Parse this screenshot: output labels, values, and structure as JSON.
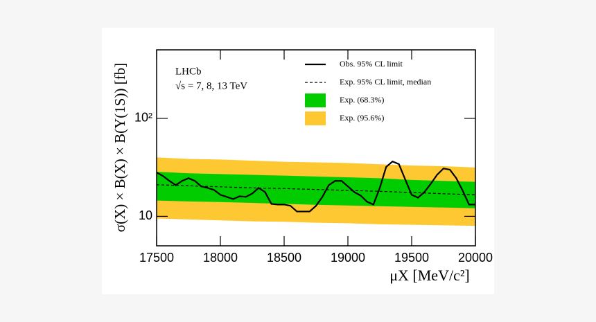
{
  "chart_data": {
    "type": "limit_bands",
    "annotations": [
      "LHCb",
      "√s = 7, 8, 13 TeV"
    ],
    "xlabel": "μX [MeV/c²]",
    "ylabel": "σ(X) × B(X) × B(Υ(1S)) [fb]",
    "xlim": [
      17500,
      20000
    ],
    "xticks": [
      17500,
      18000,
      18500,
      19000,
      19500,
      20000
    ],
    "ylim": [
      5,
      500
    ],
    "ylog": true,
    "yticks": [
      10,
      {
        "value": 100,
        "label": "10²"
      }
    ],
    "series": [
      {
        "name": "Obs. 95% CL limit",
        "color": "#000000",
        "style": "solid",
        "x": [
          17500,
          17550,
          17600,
          17650,
          17700,
          17750,
          17800,
          17850,
          17900,
          17950,
          18000,
          18050,
          18100,
          18150,
          18200,
          18250,
          18300,
          18350,
          18400,
          18450,
          18500,
          18550,
          18600,
          18650,
          18700,
          18750,
          18800,
          18850,
          18900,
          18950,
          19000,
          19050,
          19100,
          19150,
          19200,
          19250,
          19300,
          19350,
          19400,
          19450,
          19500,
          19550,
          19600,
          19650,
          19700,
          19750,
          19800,
          19850,
          19900,
          19950,
          20000
        ],
        "values": [
          28,
          25.8,
          23,
          20.8,
          23,
          24.5,
          23,
          20.2,
          19.5,
          18.6,
          16.6,
          15.8,
          15,
          16,
          15.8,
          17.1,
          19.5,
          17.7,
          13.4,
          13.2,
          13.2,
          12.8,
          11.2,
          11.2,
          11.2,
          12.8,
          15.8,
          20.8,
          23,
          23,
          20.2,
          17.7,
          16.3,
          14.1,
          13.2,
          19.5,
          31.9,
          36.3,
          34.1,
          23.7,
          16.6,
          15.5,
          17.7,
          21.5,
          26.6,
          30.8,
          29.9,
          24.5,
          18.3,
          13.2,
          13.2
        ]
      },
      {
        "name": "Exp. 95% CL limit, median",
        "color": "#000000",
        "style": "dashed",
        "x": [
          17500,
          17750,
          18000,
          18250,
          18500,
          18750,
          19000,
          19250,
          19500,
          19750,
          20000
        ],
        "values": [
          21,
          20.5,
          20,
          19.5,
          19.2,
          18.8,
          18.4,
          18,
          17.5,
          17,
          16.6
        ]
      },
      {
        "name": "Exp. (68.3%)",
        "color": "#00cc00",
        "style": "band",
        "x": [
          17500,
          17750,
          18000,
          18250,
          18500,
          18750,
          19000,
          19250,
          19500,
          19750,
          20000
        ],
        "high": [
          28.5,
          27.5,
          27,
          26.5,
          26,
          25.5,
          25,
          24.5,
          23.5,
          23,
          22.5
        ],
        "low": [
          14.5,
          14.2,
          14,
          13.7,
          13.4,
          13.1,
          12.9,
          12.7,
          12.5,
          12.3,
          12.1
        ]
      },
      {
        "name": "Exp. (95.6%)",
        "color": "#fdc832",
        "style": "band",
        "x": [
          17500,
          17750,
          18000,
          18250,
          18500,
          18750,
          19000,
          19250,
          19500,
          19750,
          20000
        ],
        "high": [
          40,
          38.5,
          38,
          37,
          36,
          35.5,
          35,
          34,
          33,
          32.5,
          31.5
        ],
        "low": [
          9.5,
          9.3,
          9.1,
          8.9,
          8.8,
          8.6,
          8.5,
          8.3,
          8.2,
          8.1,
          8.0
        ]
      }
    ]
  }
}
